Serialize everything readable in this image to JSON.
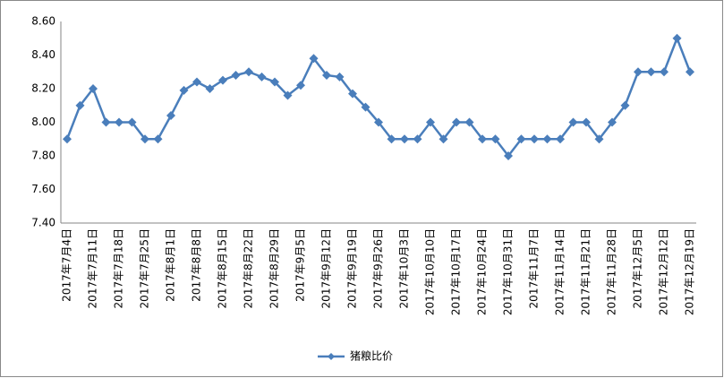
{
  "chart_data": {
    "type": "line",
    "categories": [
      "2017年7月4日",
      null,
      "2017年7月11日",
      null,
      "2017年7月18日",
      null,
      "2017年7月25日",
      null,
      "2017年8月1日",
      null,
      "2017年8月8日",
      null,
      "2017年8月15日",
      null,
      "2017年8月22日",
      null,
      "2017年8月29日",
      null,
      "2017年9月5日",
      null,
      "2017年9月12日",
      null,
      "2017年9月19日",
      null,
      "2017年9月26日",
      null,
      "2017年10月3日",
      null,
      "2017年10月10日",
      null,
      "2017年10月17日",
      null,
      "2017年10月24日",
      null,
      "2017年10月31日",
      null,
      "2017年11月7日",
      null,
      "2017年11月14日",
      null,
      "2017年11月21日",
      null,
      "2017年11月28日",
      null,
      "2017年12月5日",
      null,
      "2017年12月12日",
      null,
      "2017年12月19日"
    ],
    "series": [
      {
        "name": "猪粮比价",
        "color": "#4a7ebb",
        "values": [
          7.9,
          8.1,
          8.2,
          8.0,
          8.0,
          8.0,
          7.9,
          7.9,
          8.04,
          8.19,
          8.24,
          8.2,
          8.25,
          8.28,
          8.3,
          8.27,
          8.24,
          8.16,
          8.22,
          8.38,
          8.28,
          8.27,
          8.17,
          8.09,
          8.0,
          7.9,
          7.9,
          7.9,
          8.0,
          7.9,
          8.0,
          8.0,
          7.9,
          7.9,
          7.8,
          7.9,
          7.9,
          7.9,
          7.9,
          8.0,
          8.0,
          7.9,
          8.0,
          8.1,
          8.3,
          8.3,
          8.3,
          8.5,
          8.3
        ]
      }
    ],
    "ylim": [
      7.4,
      8.6
    ],
    "yticks": [
      {
        "value": 7.4,
        "label": "7.40"
      },
      {
        "value": 7.6,
        "label": "7.60"
      },
      {
        "value": 7.8,
        "label": "7.80"
      },
      {
        "value": 8.0,
        "label": "8.00"
      },
      {
        "value": 8.2,
        "label": "8.20"
      },
      {
        "value": 8.4,
        "label": "8.40"
      },
      {
        "value": 8.6,
        "label": "8.60"
      }
    ],
    "grid": false,
    "legend": "bottom"
  }
}
